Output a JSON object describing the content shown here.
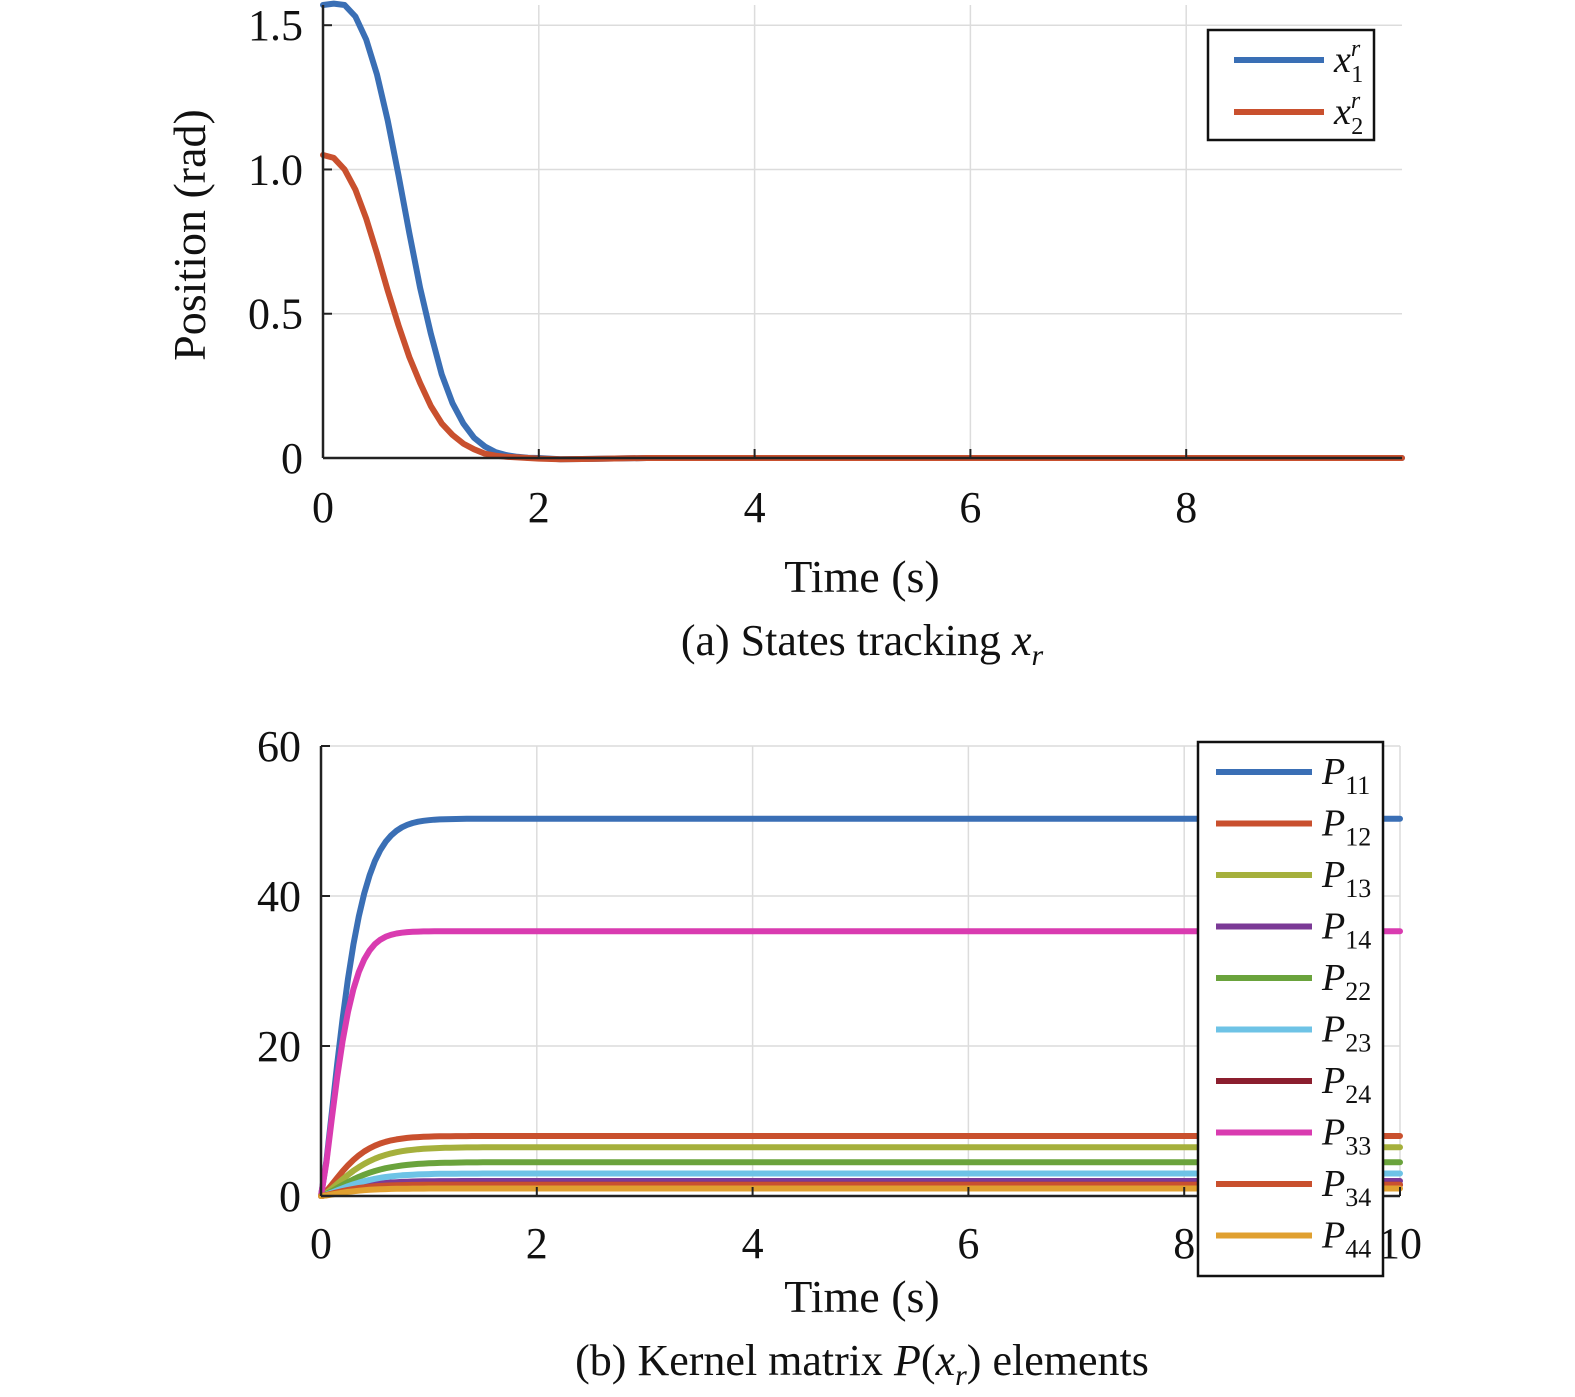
{
  "chart_data": [
    {
      "type": "line",
      "caption": {
        "prefix": "(a) States tracking ",
        "var": "x",
        "sub": "r"
      },
      "xlabel": "Time (s)",
      "ylabel": "Position (rad)",
      "xlim": [
        0,
        10
      ],
      "ylim": [
        0,
        1.57
      ],
      "xticks": [
        0,
        2,
        4,
        6,
        8
      ],
      "yticks": [
        0,
        0.5,
        1.0,
        1.5
      ],
      "ytick_labels": [
        "0",
        "0.5",
        "1.0",
        "1.5"
      ],
      "grid": true,
      "legend": "top-right",
      "series": [
        {
          "name": "x_1^r",
          "legend_label": {
            "var": "x",
            "sup": "r",
            "sub": "1"
          },
          "color": "#3a6fb5",
          "x": [
            0,
            0.1,
            0.2,
            0.3,
            0.4,
            0.5,
            0.6,
            0.7,
            0.8,
            0.9,
            1.0,
            1.1,
            1.2,
            1.3,
            1.4,
            1.5,
            1.6,
            1.7,
            1.8,
            1.9,
            2.0,
            2.2,
            2.5,
            3,
            4,
            6,
            8,
            10
          ],
          "y": [
            1.57,
            1.575,
            1.57,
            1.53,
            1.45,
            1.33,
            1.17,
            0.98,
            0.78,
            0.59,
            0.43,
            0.29,
            0.19,
            0.12,
            0.07,
            0.04,
            0.02,
            0.01,
            0.004,
            0.001,
            0.0,
            -0.004,
            -0.003,
            0.0,
            0,
            0,
            0,
            0
          ]
        },
        {
          "name": "x_2^r",
          "legend_label": {
            "var": "x",
            "sup": "r",
            "sub": "2"
          },
          "color": "#c9502e",
          "x": [
            0,
            0.1,
            0.2,
            0.3,
            0.4,
            0.5,
            0.6,
            0.7,
            0.8,
            0.9,
            1.0,
            1.1,
            1.2,
            1.3,
            1.4,
            1.5,
            1.6,
            1.7,
            1.8,
            1.9,
            2.0,
            2.2,
            2.5,
            3,
            4,
            6,
            8,
            10
          ],
          "y": [
            1.05,
            1.04,
            1.0,
            0.93,
            0.83,
            0.71,
            0.58,
            0.46,
            0.35,
            0.26,
            0.18,
            0.12,
            0.08,
            0.05,
            0.03,
            0.015,
            0.008,
            0.004,
            0.002,
            0.0,
            -0.002,
            -0.004,
            -0.003,
            0.0,
            0,
            0,
            0,
            0
          ]
        }
      ]
    },
    {
      "type": "line",
      "caption": {
        "prefix": "(b) Kernel matrix ",
        "var": "P",
        "open": "(",
        "inner": "x",
        "sub": "r",
        "close": ")",
        "suffix": " elements"
      },
      "xlabel": "Time (s)",
      "ylabel": "",
      "xlim": [
        0,
        10
      ],
      "ylim": [
        0,
        60
      ],
      "xticks": [
        0,
        2,
        4,
        6,
        8,
        10
      ],
      "yticks": [
        0,
        20,
        40,
        60
      ],
      "ytick_labels": [
        "0",
        "20",
        "40",
        "60"
      ],
      "grid": true,
      "legend": "top-right",
      "series": [
        {
          "name": "P_11",
          "legend_label": {
            "var": "P",
            "sub": "11"
          },
          "color": "#3a6fb5",
          "final": 50.3,
          "tau": 0.28
        },
        {
          "name": "P_12",
          "legend_label": {
            "var": "P",
            "sub": "12"
          },
          "color": "#c9502e",
          "final": 8.0,
          "tau": 0.32
        },
        {
          "name": "P_13",
          "legend_label": {
            "var": "P",
            "sub": "13"
          },
          "color": "#a5b03c",
          "final": 6.5,
          "tau": 0.38
        },
        {
          "name": "P_14",
          "legend_label": {
            "var": "P",
            "sub": "14"
          },
          "color": "#7b3a96",
          "final": 2.0,
          "tau": 0.35
        },
        {
          "name": "P_22",
          "legend_label": {
            "var": "P",
            "sub": "22"
          },
          "color": "#6aa33c",
          "final": 4.5,
          "tau": 0.4
        },
        {
          "name": "P_23",
          "legend_label": {
            "var": "P",
            "sub": "23"
          },
          "color": "#6ec3e6",
          "final": 3.0,
          "tau": 0.38
        },
        {
          "name": "P_24",
          "legend_label": {
            "var": "P",
            "sub": "24"
          },
          "color": "#8b1e2e",
          "final": 1.5,
          "tau": 0.35
        },
        {
          "name": "P_33",
          "legend_label": {
            "var": "P",
            "sub": "33"
          },
          "color": "#d93bb0",
          "final": 35.3,
          "tau": 0.22
        },
        {
          "name": "P_34",
          "legend_label": {
            "var": "P",
            "sub": "34"
          },
          "color": "#c9502e",
          "final": 1.5,
          "tau": 0.3
        },
        {
          "name": "P_44",
          "legend_label": {
            "var": "P",
            "sub": "44"
          },
          "color": "#e0a030",
          "final": 1.0,
          "tau": 0.3
        }
      ]
    }
  ]
}
